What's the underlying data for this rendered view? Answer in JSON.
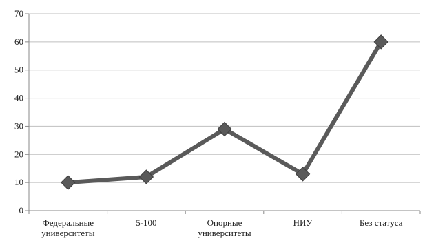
{
  "chart_data": {
    "type": "line",
    "title": "",
    "xlabel": "",
    "ylabel": "",
    "categories": [
      [
        "Федеральные",
        "университеты"
      ],
      [
        "5-100"
      ],
      [
        "Опорные",
        "университеты"
      ],
      [
        "НИУ"
      ],
      [
        "Без статуса"
      ]
    ],
    "series": [
      {
        "values": [
          10,
          12,
          29,
          13,
          60
        ]
      }
    ],
    "ylim": [
      0,
      70
    ],
    "yticks": [
      "0",
      "10",
      "20",
      "30",
      "40",
      "50",
      "60",
      "70"
    ],
    "grid": true,
    "legend": "none",
    "line_color": "#5a5a5a",
    "marker": "diamond"
  }
}
